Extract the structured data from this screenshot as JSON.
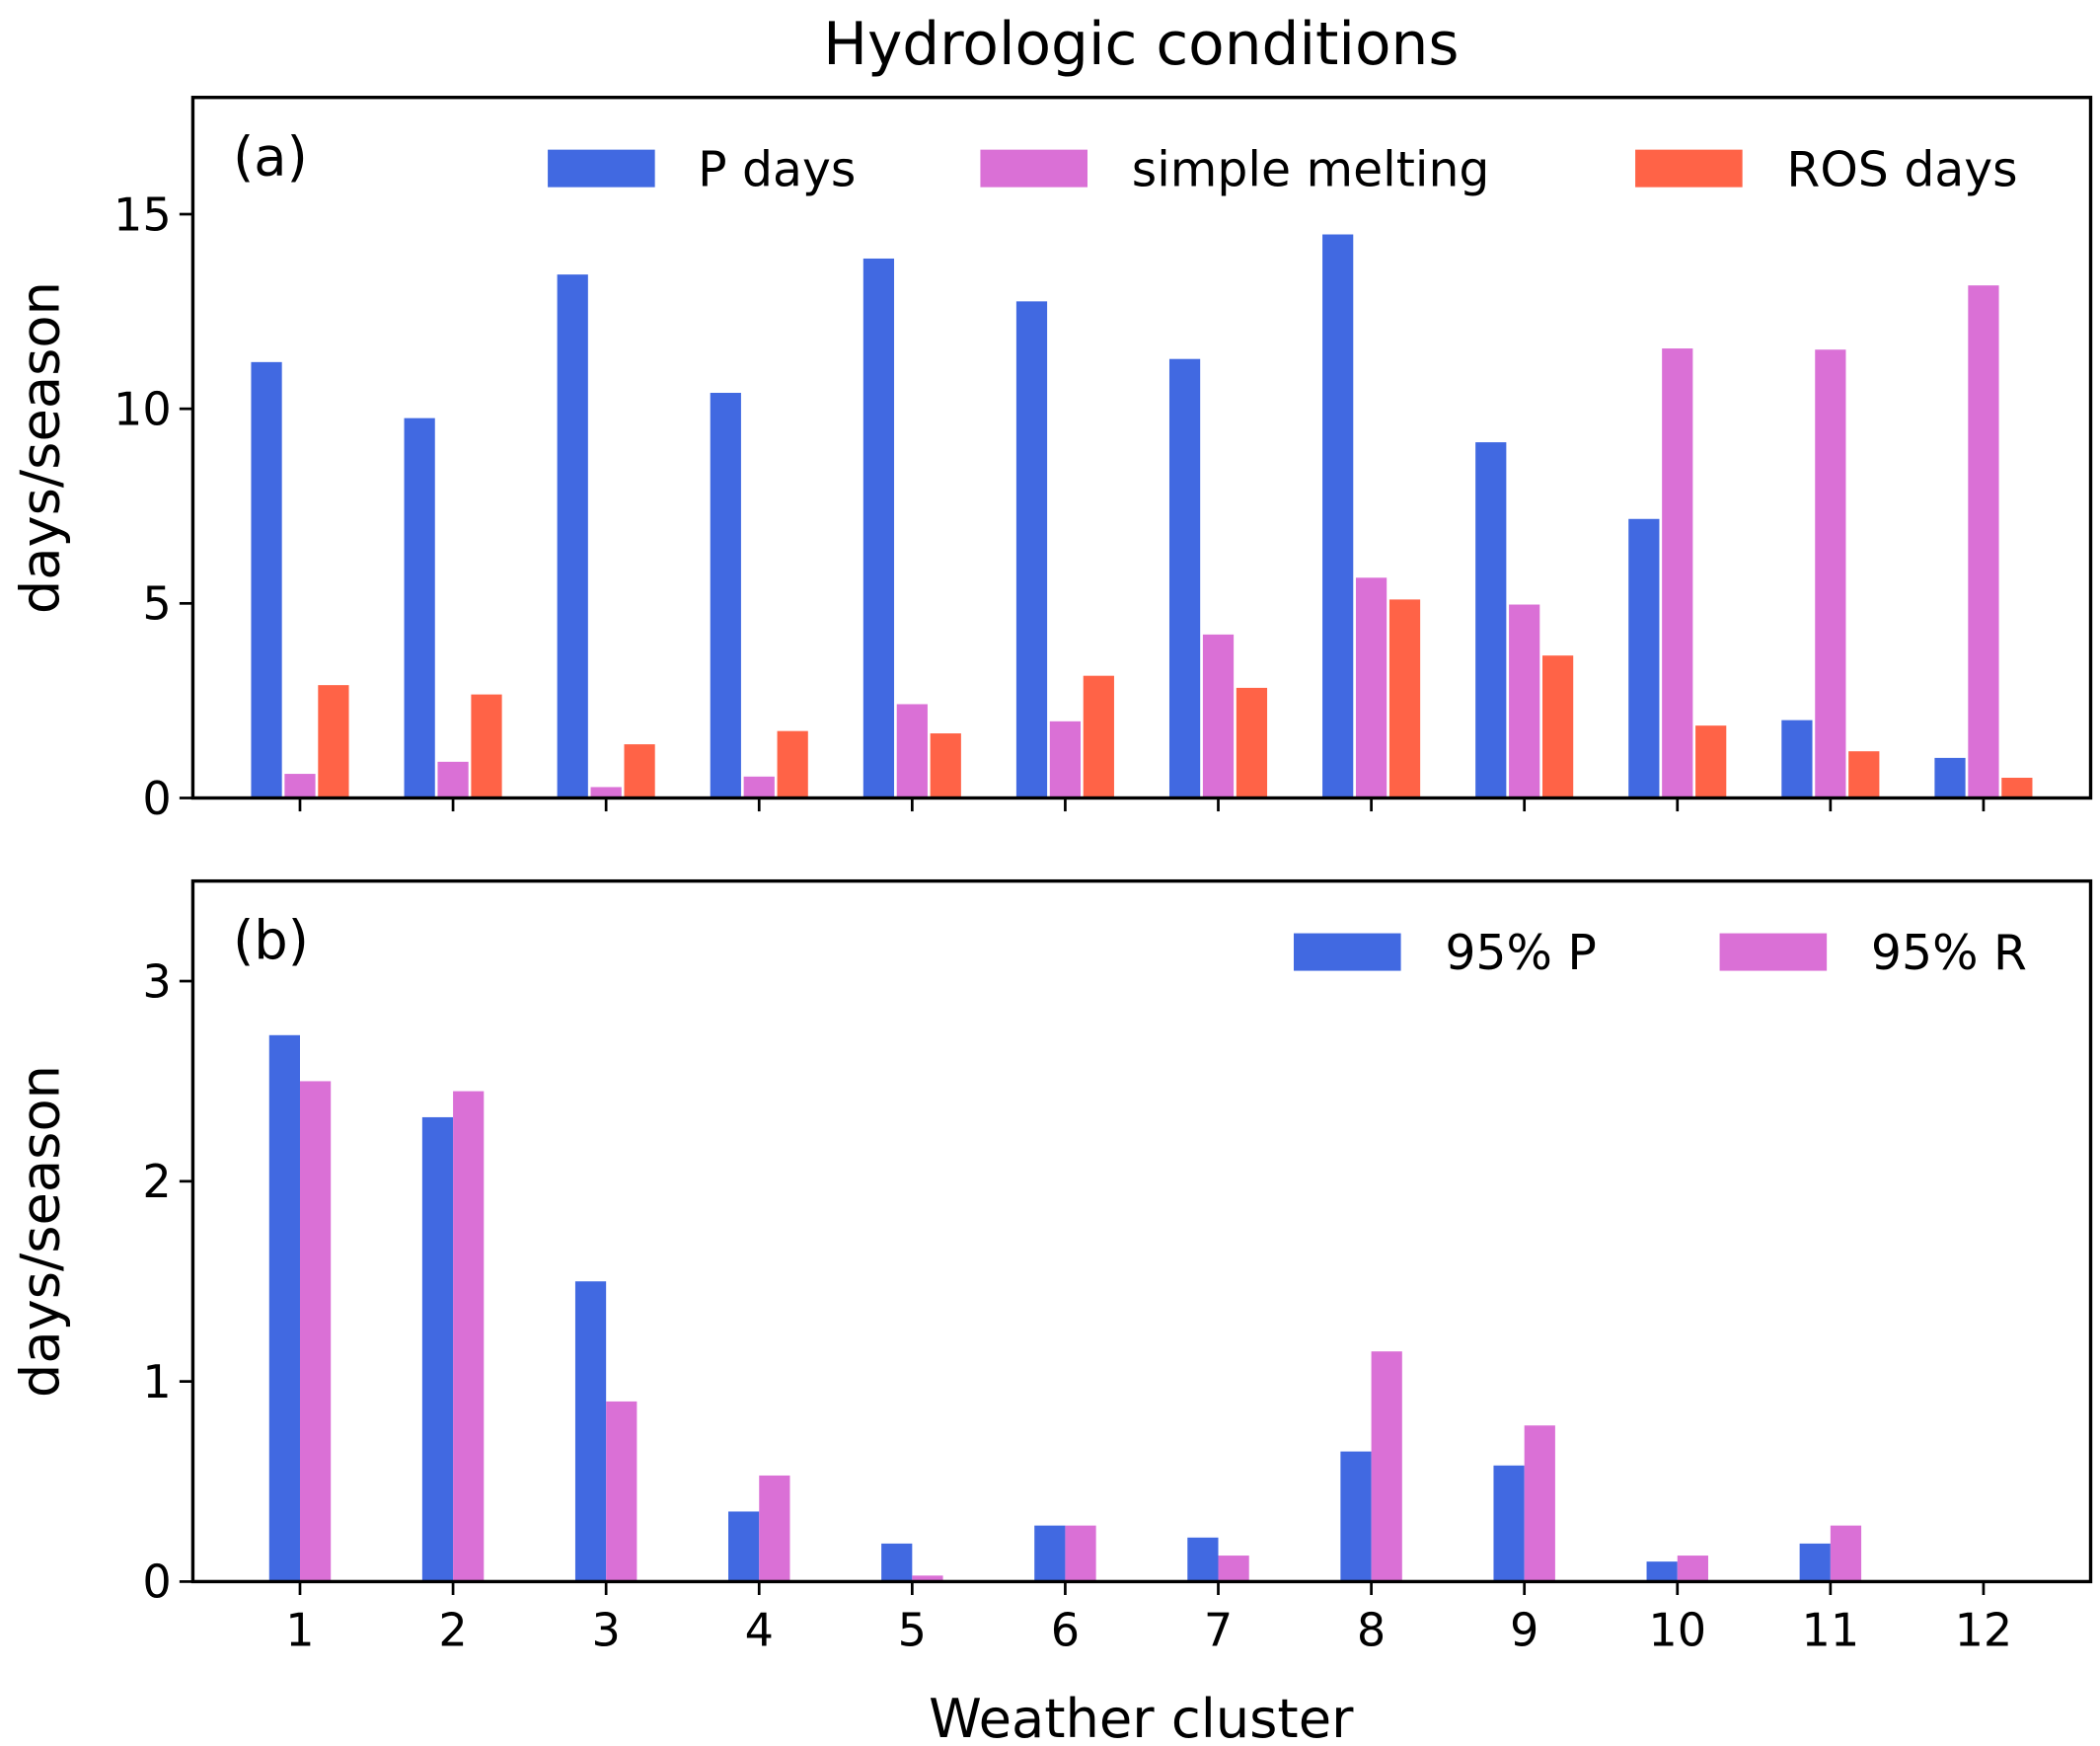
{
  "chart_data": [
    {
      "type": "bar",
      "title": "Hydrologic conditions",
      "panel_label": "(a)",
      "ylabel": "days/season",
      "xlabel": "",
      "categories": [
        "1",
        "2",
        "3",
        "4",
        "5",
        "6",
        "7",
        "8",
        "9",
        "10",
        "11",
        "12"
      ],
      "ylim": [
        0,
        18
      ],
      "xlim": [
        0.3,
        12.7
      ],
      "yticks": [
        0,
        5,
        10,
        15
      ],
      "grid": false,
      "legend_placement": "top-right",
      "series": [
        {
          "name": "P days",
          "color": "#4169E1",
          "values": [
            11.2,
            9.76,
            13.45,
            10.41,
            13.86,
            12.76,
            11.28,
            14.48,
            9.14,
            7.17,
            2.0,
            1.03
          ]
        },
        {
          "name": "simple melting",
          "color": "#DA70D6",
          "values": [
            0.62,
            0.93,
            0.28,
            0.55,
            2.41,
            1.97,
            4.2,
            5.66,
            4.97,
            11.55,
            11.52,
            13.17
          ]
        },
        {
          "name": "ROS days",
          "color": "#FF6347",
          "values": [
            2.9,
            2.66,
            1.38,
            1.72,
            1.66,
            3.14,
            2.83,
            5.1,
            3.66,
            1.86,
            1.2,
            0.52
          ]
        }
      ]
    },
    {
      "type": "bar",
      "panel_label": "(b)",
      "ylabel": "days/season",
      "xlabel": "Weather cluster",
      "categories": [
        "1",
        "2",
        "3",
        "4",
        "5",
        "6",
        "7",
        "8",
        "9",
        "10",
        "11",
        "12"
      ],
      "ylim": [
        0,
        3.5
      ],
      "xlim": [
        0.3,
        12.7
      ],
      "yticks": [
        0,
        1,
        2,
        3
      ],
      "grid": false,
      "legend_placement": "top-right",
      "series": [
        {
          "name": "95% P",
          "color": "#4169E1",
          "values": [
            2.73,
            2.32,
            1.5,
            0.35,
            0.19,
            0.28,
            0.22,
            0.65,
            0.58,
            0.1,
            0.19,
            0
          ]
        },
        {
          "name": "95% R",
          "color": "#DA70D6",
          "values": [
            2.5,
            2.45,
            0.9,
            0.53,
            0.03,
            0.28,
            0.13,
            1.15,
            0.78,
            0.13,
            0.28,
            0
          ]
        }
      ]
    }
  ]
}
